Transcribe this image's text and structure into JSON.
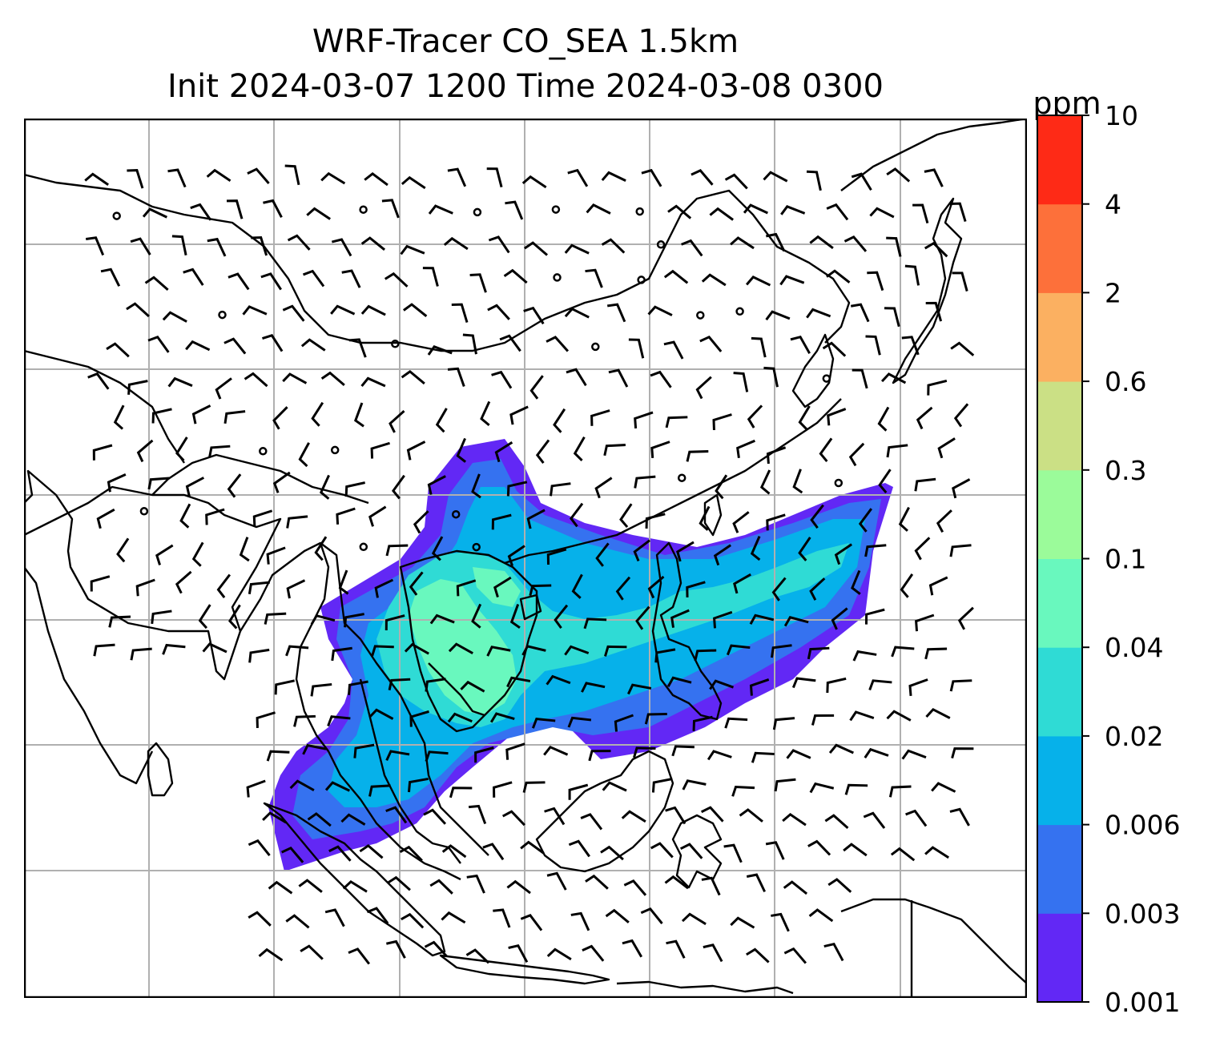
{
  "title": {
    "line1": "WRF-Tracer CO_SEA 1.5km",
    "line2": "Init 2024-03-07 1200 Time 2024-03-08 0300"
  },
  "colorbar": {
    "unit": "ppm",
    "levels": [
      "0.001",
      "0.003",
      "0.006",
      "0.02",
      "0.04",
      "0.1",
      "0.3",
      "0.6",
      "2",
      "4",
      "10"
    ],
    "colors": [
      "#6228f5",
      "#3572f0",
      "#06b1ea",
      "#2fdbd5",
      "#69f8be",
      "#9bfb9a",
      "#cbe085",
      "#fbb061",
      "#fd703a",
      "#fe2a16"
    ]
  },
  "map": {
    "gridlines": true,
    "grid_color": "#b0b0b0",
    "coastline_color": "#000000",
    "field": "CO tracer concentration (filled contours)",
    "overlay": "wind barbs",
    "plume_colors": {
      "outer": "#6228f5",
      "mid": "#3572f0",
      "inner": "#06b1ea",
      "core": "#2fdbd5",
      "peak": "#69f8be"
    }
  }
}
